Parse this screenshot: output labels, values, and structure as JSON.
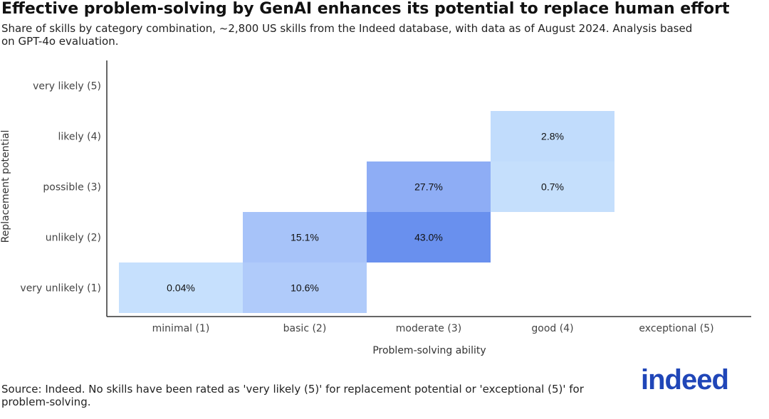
{
  "title": "Effective problem-solving by GenAI enhances its potential to replace human effort",
  "subtitle": "Share of skills by category combination, ~2,800 US skills from the Indeed database, with data as of August 2024. Analysis based on GPT-4o evaluation.",
  "source": "Source: Indeed. No skills have been rated as 'very likely (5)' for replacement potential or 'exceptional (5)' for problem-solving.",
  "logo": "indeed",
  "colors": {
    "brand": "#2046b8",
    "low": "#c6e0fd",
    "high": "#6990ee"
  },
  "chart_data": {
    "type": "heatmap",
    "xlabel": "Problem-solving ability",
    "ylabel": "Replacement potential",
    "x_categories": [
      "minimal (1)",
      "basic (2)",
      "moderate (3)",
      "good (4)",
      "exceptional (5)"
    ],
    "y_categories": [
      "very unlikely (1)",
      "unlikely (2)",
      "possible (3)",
      "likely (4)",
      "very likely (5)"
    ],
    "cells": [
      {
        "x": "minimal (1)",
        "y": "very unlikely (1)",
        "value": 0.04,
        "label": "0.04%",
        "color": "#c6e0fd"
      },
      {
        "x": "basic (2)",
        "y": "very unlikely (1)",
        "value": 10.6,
        "label": "10.6%",
        "color": "#b0cbfa"
      },
      {
        "x": "basic (2)",
        "y": "unlikely (2)",
        "value": 15.1,
        "label": "15.1%",
        "color": "#a7c3f9"
      },
      {
        "x": "moderate (3)",
        "y": "unlikely (2)",
        "value": 43.0,
        "label": "43.0%",
        "color": "#6990ee"
      },
      {
        "x": "moderate (3)",
        "y": "possible (3)",
        "value": 27.7,
        "label": "27.7%",
        "color": "#8eadf5"
      },
      {
        "x": "good (4)",
        "y": "possible (3)",
        "value": 0.7,
        "label": "0.7%",
        "color": "#c5dffc"
      },
      {
        "x": "good (4)",
        "y": "likely (4)",
        "value": 2.8,
        "label": "2.8%",
        "color": "#c1dcfc"
      }
    ]
  }
}
